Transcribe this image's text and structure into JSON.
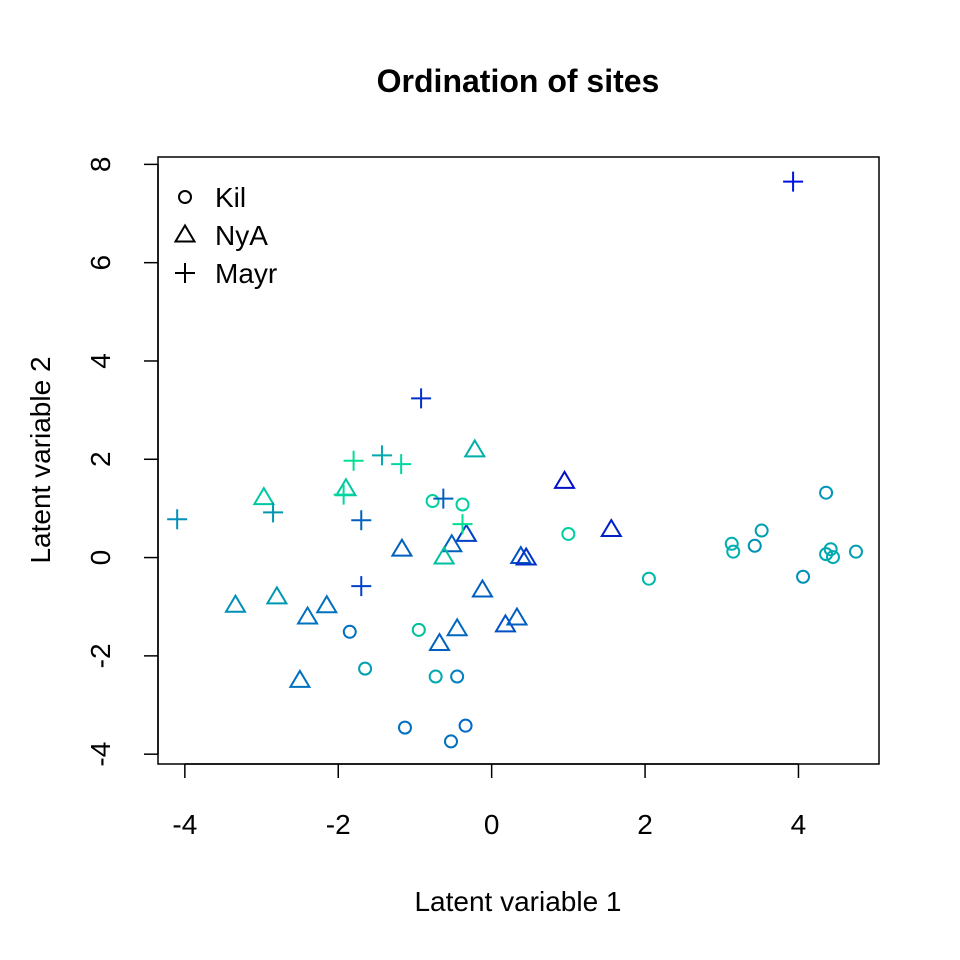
{
  "chart_data": {
    "type": "scatter",
    "title": "Ordination of sites",
    "xlabel": "Latent variable  1",
    "ylabel": "Latent variable  2",
    "xlim": [
      -4.35,
      5.05
    ],
    "ylim": [
      -4.2,
      8.15
    ],
    "xticks": [
      -4,
      -2,
      0,
      2,
      4
    ],
    "yticks": [
      -4,
      -2,
      0,
      2,
      4,
      6,
      8
    ],
    "grid": false,
    "legend_position": "top-left",
    "legend": [
      {
        "name": "Kil",
        "marker": "circle"
      },
      {
        "name": "NyA",
        "marker": "triangle"
      },
      {
        "name": "Mayr",
        "marker": "plus"
      }
    ],
    "series": [
      {
        "name": "Kil",
        "marker": "circle",
        "points": [
          {
            "x": -0.77,
            "y": 1.15,
            "color": "#00d0a0"
          },
          {
            "x": -0.38,
            "y": 1.08,
            "color": "#00d0a0"
          },
          {
            "x": 1.0,
            "y": 0.48,
            "color": "#00d0a0"
          },
          {
            "x": -0.95,
            "y": -1.47,
            "color": "#00c098"
          },
          {
            "x": -1.85,
            "y": -1.51,
            "color": "#0070c0"
          },
          {
            "x": -1.65,
            "y": -2.26,
            "color": "#00a0b0"
          },
          {
            "x": -0.73,
            "y": -2.42,
            "color": "#00a8b0"
          },
          {
            "x": -0.45,
            "y": -2.42,
            "color": "#0080c0"
          },
          {
            "x": -1.13,
            "y": -3.46,
            "color": "#0070c0"
          },
          {
            "x": -0.34,
            "y": -3.42,
            "color": "#0068c8"
          },
          {
            "x": -0.53,
            "y": -3.74,
            "color": "#0070c0"
          },
          {
            "x": 2.05,
            "y": -0.43,
            "color": "#00b8a8"
          },
          {
            "x": 3.13,
            "y": 0.28,
            "color": "#00b0b0"
          },
          {
            "x": 3.15,
            "y": 0.12,
            "color": "#00b0b0"
          },
          {
            "x": 3.43,
            "y": 0.24,
            "color": "#0090b8"
          },
          {
            "x": 3.52,
            "y": 0.55,
            "color": "#00a0b0"
          },
          {
            "x": 4.06,
            "y": -0.39,
            "color": "#0090b8"
          },
          {
            "x": 4.36,
            "y": 1.32,
            "color": "#0098b8"
          },
          {
            "x": 4.36,
            "y": 0.07,
            "color": "#00a8b0"
          },
          {
            "x": 4.42,
            "y": 0.17,
            "color": "#00a8b0"
          },
          {
            "x": 4.45,
            "y": 0.01,
            "color": "#00a8b0"
          },
          {
            "x": 4.75,
            "y": 0.12,
            "color": "#00a0b0"
          }
        ]
      },
      {
        "name": "NyA",
        "marker": "triangle",
        "points": [
          {
            "x": -2.97,
            "y": 1.22,
            "color": "#00c8a0"
          },
          {
            "x": -1.9,
            "y": 1.4,
            "color": "#00c8a0"
          },
          {
            "x": -0.22,
            "y": 2.19,
            "color": "#00b0a8"
          },
          {
            "x": 0.95,
            "y": 1.55,
            "color": "#0010c8"
          },
          {
            "x": 1.56,
            "y": 0.57,
            "color": "#0020c8"
          },
          {
            "x": -1.17,
            "y": 0.17,
            "color": "#0060c0"
          },
          {
            "x": -0.52,
            "y": 0.26,
            "color": "#0060c0"
          },
          {
            "x": -0.33,
            "y": 0.47,
            "color": "#0040c8"
          },
          {
            "x": -0.62,
            "y": 0.01,
            "color": "#00c0a0"
          },
          {
            "x": 0.38,
            "y": 0.02,
            "color": "#0050c8"
          },
          {
            "x": 0.45,
            "y": -0.01,
            "color": "#0030c8"
          },
          {
            "x": -0.12,
            "y": -0.66,
            "color": "#0060c0"
          },
          {
            "x": -3.34,
            "y": -0.97,
            "color": "#0090b8"
          },
          {
            "x": -2.8,
            "y": -0.8,
            "color": "#0098b0"
          },
          {
            "x": -2.4,
            "y": -1.21,
            "color": "#0070c0"
          },
          {
            "x": -2.15,
            "y": -0.98,
            "color": "#0070c0"
          },
          {
            "x": -2.5,
            "y": -2.5,
            "color": "#0070c0"
          },
          {
            "x": -0.68,
            "y": -1.75,
            "color": "#0060c0"
          },
          {
            "x": -0.45,
            "y": -1.45,
            "color": "#0068c0"
          },
          {
            "x": 0.18,
            "y": -1.37,
            "color": "#0050c8"
          },
          {
            "x": 0.33,
            "y": -1.23,
            "color": "#0060c0"
          }
        ]
      },
      {
        "name": "Mayr",
        "marker": "plus",
        "points": [
          {
            "x": 3.93,
            "y": 7.65,
            "color": "#0010e0"
          },
          {
            "x": -0.92,
            "y": 3.24,
            "color": "#0030c8"
          },
          {
            "x": -1.43,
            "y": 2.08,
            "color": "#00a8b0"
          },
          {
            "x": -1.8,
            "y": 1.97,
            "color": "#00e090"
          },
          {
            "x": -1.18,
            "y": 1.9,
            "color": "#00d8a0"
          },
          {
            "x": -1.93,
            "y": 1.28,
            "color": "#00d8a0"
          },
          {
            "x": -0.63,
            "y": 1.2,
            "color": "#0060c0"
          },
          {
            "x": -4.1,
            "y": 0.78,
            "color": "#0090b8"
          },
          {
            "x": -2.85,
            "y": 0.92,
            "color": "#0098b0"
          },
          {
            "x": -1.7,
            "y": 0.76,
            "color": "#0060c0"
          },
          {
            "x": -0.38,
            "y": 0.68,
            "color": "#00e090"
          },
          {
            "x": -1.7,
            "y": -0.58,
            "color": "#0040c8"
          }
        ]
      }
    ]
  }
}
